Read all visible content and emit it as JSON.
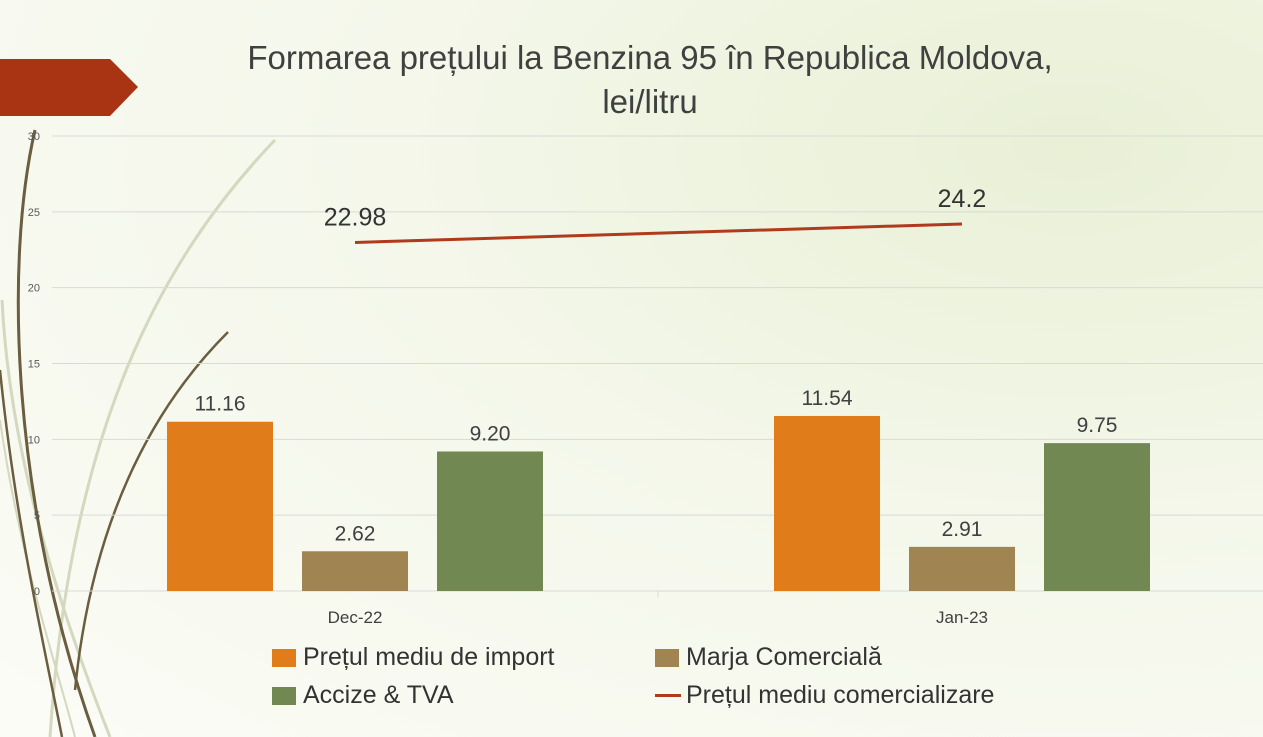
{
  "chart_data": {
    "type": "bar",
    "title_lines": [
      "Formarea prețului la Benzina 95 în Republica Moldova,",
      "lei/litru"
    ],
    "categories": [
      "Dec-22",
      "Jan-23"
    ],
    "series": [
      {
        "name": "Prețul mediu de import",
        "kind": "bar",
        "color": "#e07c1a",
        "values": [
          11.16,
          11.54
        ],
        "labels": [
          "11.16",
          "11.54"
        ]
      },
      {
        "name": "Marja Comercială",
        "kind": "bar",
        "color": "#a08452",
        "values": [
          2.62,
          2.91
        ],
        "labels": [
          "2.62",
          "2.91"
        ]
      },
      {
        "name": "Accize & TVA",
        "kind": "bar",
        "color": "#728852",
        "values": [
          9.2,
          9.75
        ],
        "labels": [
          "9.20",
          "9.75"
        ]
      },
      {
        "name": "Prețul mediu comercializare",
        "kind": "line",
        "color": "#b03a1c",
        "values": [
          22.98,
          24.2
        ],
        "labels": [
          "22.98",
          "24.2"
        ]
      }
    ],
    "ylim": [
      0,
      30
    ],
    "yticks": [
      "0",
      "5",
      "10",
      "15",
      "20",
      "25",
      "30"
    ],
    "grid": true,
    "legend_position": "bottom"
  },
  "colors": {
    "accent_arrow": "#a93413",
    "gridline": "#d9d9d9",
    "decor_curve_dark": "#6b5d40",
    "decor_curve_light": "#d4d8be"
  }
}
